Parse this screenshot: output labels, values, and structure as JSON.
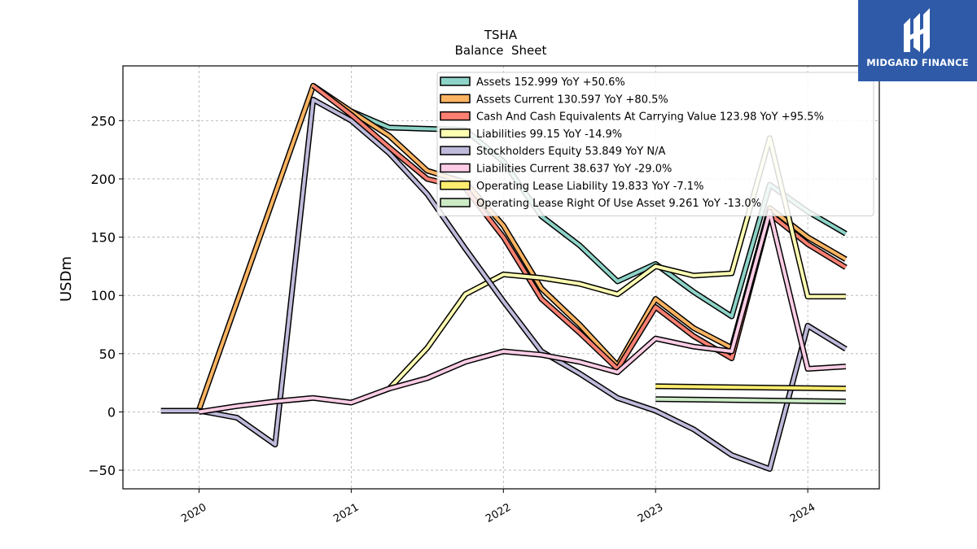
{
  "brand": {
    "name": "MIDGARD FINANCE",
    "bg_color": "#2e5aa8"
  },
  "chart_data": {
    "type": "line",
    "title": "TSHA",
    "subtitle": "Balance  Sheet",
    "ylabel": "USDm",
    "xlabel": "",
    "xlim": [
      2019.5,
      2024.47
    ],
    "ylim": [
      -66,
      297
    ],
    "yticks": [
      -50,
      0,
      50,
      100,
      150,
      200,
      250
    ],
    "ytick_labels": [
      "−50",
      "0",
      "50",
      "100",
      "150",
      "200",
      "250"
    ],
    "xticks": [
      2020,
      2021,
      2022,
      2023,
      2024
    ],
    "xtick_labels": [
      "2020",
      "2021",
      "2022",
      "2023",
      "2024"
    ],
    "grid": true,
    "legend_position": "top-right",
    "series": [
      {
        "name": "Assets",
        "legend": "Assets  152.999 YoY +50.6%",
        "color": "#8dd3c7",
        "points": [
          [
            2021.0,
            258
          ],
          [
            2021.25,
            244
          ],
          [
            2021.5,
            243
          ],
          [
            2021.75,
            242
          ],
          [
            2022.0,
            215
          ],
          [
            2022.25,
            168
          ],
          [
            2022.5,
            143
          ],
          [
            2022.75,
            112
          ],
          [
            2023.0,
            127
          ],
          [
            2023.25,
            103
          ],
          [
            2023.5,
            82
          ],
          [
            2023.75,
            195
          ],
          [
            2024.0,
            172
          ],
          [
            2024.25,
            153
          ]
        ]
      },
      {
        "name": "Assets Current",
        "legend": "Assets Current  130.597 YoY +80.5%",
        "color": "#fdb462",
        "points": [
          [
            2020.0,
            2
          ],
          [
            2020.75,
            280
          ],
          [
            2021.0,
            258
          ],
          [
            2021.25,
            237
          ],
          [
            2021.5,
            207
          ],
          [
            2021.75,
            197
          ],
          [
            2022.0,
            160
          ],
          [
            2022.25,
            106
          ],
          [
            2022.5,
            75
          ],
          [
            2022.75,
            40
          ],
          [
            2023.0,
            97
          ],
          [
            2023.25,
            72
          ],
          [
            2023.5,
            55
          ],
          [
            2023.75,
            175
          ],
          [
            2024.0,
            150
          ],
          [
            2024.25,
            131
          ]
        ]
      },
      {
        "name": "Cash And Cash Equivalents At Carrying Value",
        "legend": "Cash And Cash Equivalents At Carrying Value  123.98 YoY +95.5%",
        "color": "#fb8072",
        "points": [
          [
            2020.75,
            280
          ],
          [
            2021.0,
            255
          ],
          [
            2021.25,
            227
          ],
          [
            2021.5,
            200
          ],
          [
            2021.75,
            192
          ],
          [
            2022.0,
            150
          ],
          [
            2022.25,
            97
          ],
          [
            2022.5,
            68
          ],
          [
            2022.75,
            37
          ],
          [
            2023.0,
            90
          ],
          [
            2023.25,
            65
          ],
          [
            2023.5,
            46
          ],
          [
            2023.75,
            170
          ],
          [
            2024.0,
            144
          ],
          [
            2024.25,
            124
          ]
        ]
      },
      {
        "name": "Liabilities",
        "legend": "Liabilities  99.15 YoY -14.9%",
        "color": "#ffffb3",
        "points": [
          [
            2021.25,
            20
          ],
          [
            2021.5,
            55
          ],
          [
            2021.75,
            101
          ],
          [
            2022.0,
            118
          ],
          [
            2022.25,
            115
          ],
          [
            2022.5,
            110
          ],
          [
            2022.75,
            101
          ],
          [
            2023.0,
            125
          ],
          [
            2023.25,
            117
          ],
          [
            2023.5,
            119
          ],
          [
            2023.75,
            235
          ],
          [
            2024.0,
            99
          ],
          [
            2024.25,
            99
          ]
        ]
      },
      {
        "name": "Stockholders Equity",
        "legend": "Stockholders Equity  53.849 YoY N/A",
        "color": "#bebada",
        "points": [
          [
            2019.75,
            1
          ],
          [
            2020.0,
            1
          ],
          [
            2020.25,
            -5
          ],
          [
            2020.5,
            -28
          ],
          [
            2020.75,
            268
          ],
          [
            2021.0,
            250
          ],
          [
            2021.25,
            222
          ],
          [
            2021.5,
            187
          ],
          [
            2021.75,
            140
          ],
          [
            2022.0,
            95
          ],
          [
            2022.25,
            52
          ],
          [
            2022.5,
            33
          ],
          [
            2022.75,
            12
          ],
          [
            2023.0,
            1
          ],
          [
            2023.25,
            -15
          ],
          [
            2023.5,
            -37
          ],
          [
            2023.75,
            -49
          ],
          [
            2024.0,
            74
          ],
          [
            2024.25,
            54
          ]
        ]
      },
      {
        "name": "Liabilities Current",
        "legend": "Liabilities Current  38.637 YoY -29.0%",
        "color": "#fccde5",
        "points": [
          [
            2020.0,
            0
          ],
          [
            2020.25,
            5
          ],
          [
            2020.5,
            9
          ],
          [
            2020.75,
            12
          ],
          [
            2021.0,
            8
          ],
          [
            2021.25,
            20
          ],
          [
            2021.5,
            29
          ],
          [
            2021.75,
            43
          ],
          [
            2022.0,
            52
          ],
          [
            2022.25,
            49
          ],
          [
            2022.5,
            43
          ],
          [
            2022.75,
            34
          ],
          [
            2023.0,
            63
          ],
          [
            2023.25,
            56
          ],
          [
            2023.5,
            52
          ],
          [
            2023.75,
            172
          ],
          [
            2024.0,
            37
          ],
          [
            2024.25,
            39
          ]
        ]
      },
      {
        "name": "Operating Lease Liability",
        "legend": "Operating Lease Liability  19.833 YoY -7.1%",
        "color": "#ffed6f",
        "points": [
          [
            2023.0,
            22
          ],
          [
            2024.25,
            20
          ]
        ]
      },
      {
        "name": "Operating Lease Right Of Use Asset",
        "legend": "Operating Lease Right Of Use Asset  9.261 YoY -13.0%",
        "color": "#ccebc5",
        "points": [
          [
            2023.0,
            11
          ],
          [
            2024.25,
            9
          ]
        ]
      }
    ]
  }
}
